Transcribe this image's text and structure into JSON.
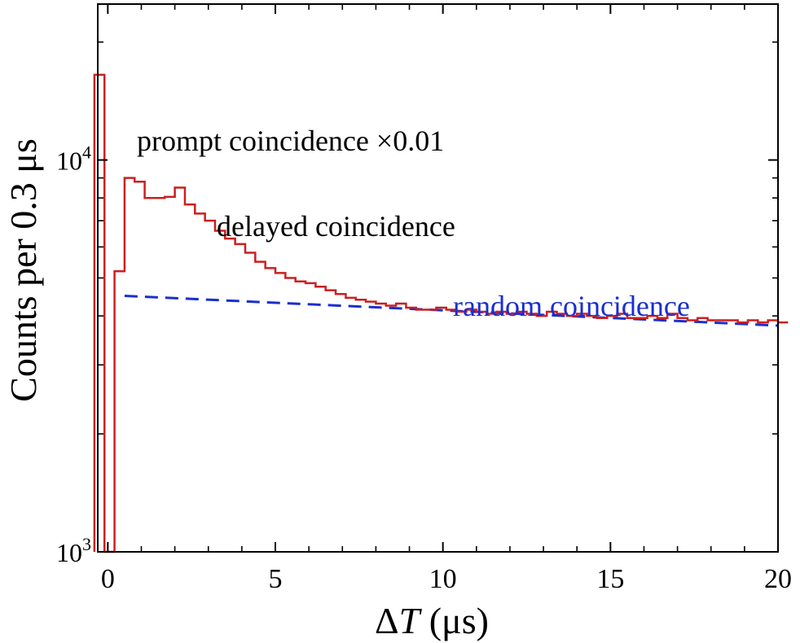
{
  "chart_data": {
    "type": "histogram",
    "title": "",
    "xlabel_prefix": "Δ",
    "xlabel_var": "T",
    "xlabel_unit": " (μs)",
    "ylabel": "Counts per 0.3 μs",
    "xlim": [
      -0.3,
      20
    ],
    "ylim": [
      1000,
      25000
    ],
    "yscale": "log",
    "x_ticks": [
      0,
      5,
      10,
      15,
      20
    ],
    "x_tick_labels": [
      "0",
      "5",
      "10",
      "15",
      "20"
    ],
    "y_tick_labels": [
      {
        "value": 1000,
        "base": "10",
        "exp": "3"
      },
      {
        "value": 10000,
        "base": "10",
        "exp": "4"
      }
    ],
    "bin_width": 0.3,
    "series": [
      {
        "name": "histogram",
        "color": "#cc1f1f",
        "start": -0.4,
        "prompt_values": [
          16500,
          1000
        ],
        "delayed_start": 0.2,
        "delayed_values": [
          5200,
          9000,
          8800,
          8000,
          8000,
          8050,
          8500,
          7700,
          7300,
          7000,
          6600,
          6300,
          6100,
          5800,
          5500,
          5300,
          5150,
          5000,
          4900,
          4850,
          4750,
          4650,
          4550,
          4450,
          4400,
          4350,
          4300,
          4250,
          4300,
          4200,
          4150,
          4150,
          4200,
          4150,
          4100,
          4150,
          4100,
          4050,
          4100,
          4050,
          4100,
          4050,
          4000,
          4100,
          4050,
          4000,
          4050,
          4000,
          3950,
          4000,
          4050,
          3950,
          3950,
          4000,
          3950,
          4050,
          3950,
          3900,
          3950,
          3900,
          3900,
          3900,
          3850,
          3900,
          3850,
          3900,
          3850,
          3850
        ]
      },
      {
        "name": "random coincidence",
        "style": "dashed",
        "color": "#1a2fd0",
        "x": [
          0.5,
          20
        ],
        "y": [
          4500,
          3780
        ]
      }
    ],
    "annotations": {
      "prompt": "prompt coincidence ×0.01",
      "delayed": "delayed coincidence",
      "random": "random coincidence"
    }
  }
}
